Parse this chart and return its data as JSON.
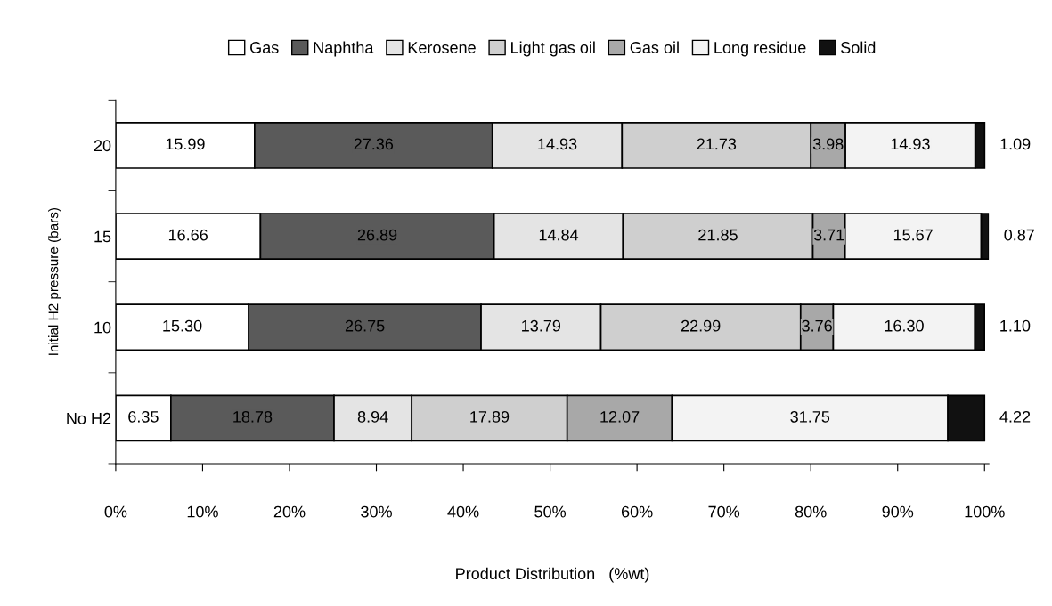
{
  "chart_data": {
    "type": "bar",
    "orientation": "horizontal",
    "stacked": true,
    "xlabel": "Product Distribution   (%wt)",
    "ylabel": "Initial H2 pressure (bars)",
    "categories": [
      "20",
      "15",
      "10",
      "No H2"
    ],
    "series": [
      {
        "name": "Gas",
        "color": "#ffffff",
        "values": [
          15.99,
          16.66,
          15.3,
          6.35
        ]
      },
      {
        "name": "Naphtha",
        "color": "#5a5a5a",
        "values": [
          27.36,
          26.89,
          26.75,
          18.78
        ]
      },
      {
        "name": "Kerosene",
        "color": "#e4e4e4",
        "values": [
          14.93,
          14.84,
          13.79,
          8.94
        ]
      },
      {
        "name": "Light gas oil",
        "color": "#cfcfcf",
        "values": [
          21.73,
          21.85,
          22.99,
          17.89
        ]
      },
      {
        "name": "Gas oil",
        "color": "#a8a8a8",
        "values": [
          3.98,
          3.71,
          3.76,
          12.07
        ]
      },
      {
        "name": "Long residue",
        "color": "#f3f3f3",
        "values": [
          14.93,
          15.67,
          16.3,
          31.75
        ]
      },
      {
        "name": "Solid",
        "color": "#111111",
        "values": [
          1.09,
          0.87,
          1.1,
          4.22
        ]
      }
    ],
    "xlim": [
      0,
      100.5
    ],
    "xticks": [
      {
        "value": 0,
        "label": "0%"
      },
      {
        "value": 10,
        "label": "10%"
      },
      {
        "value": 20,
        "label": "20%"
      },
      {
        "value": 30,
        "label": "30%"
      },
      {
        "value": 40,
        "label": "40%"
      },
      {
        "value": 50,
        "label": "50%"
      },
      {
        "value": 60,
        "label": "60%"
      },
      {
        "value": 70,
        "label": "70%"
      },
      {
        "value": 80,
        "label": "80%"
      },
      {
        "value": 90,
        "label": "90%"
      },
      {
        "value": 100,
        "label": "100%"
      }
    ],
    "value_labels": [
      [
        "15.99",
        "27.36",
        "14.93",
        "21.73",
        "3.98",
        "14.93",
        "1.09"
      ],
      [
        "16.66",
        "26.89",
        "14.84",
        "21.85",
        "3.71",
        "15.67",
        "0.87"
      ],
      [
        "15.30",
        "26.75",
        "13.79",
        "22.99",
        "3.76",
        "16.30",
        "1.10"
      ],
      [
        "6.35",
        "18.78",
        "8.94",
        "17.89",
        "12.07",
        "31.75",
        "4.22"
      ]
    ],
    "legend": "top",
    "grid": false
  }
}
